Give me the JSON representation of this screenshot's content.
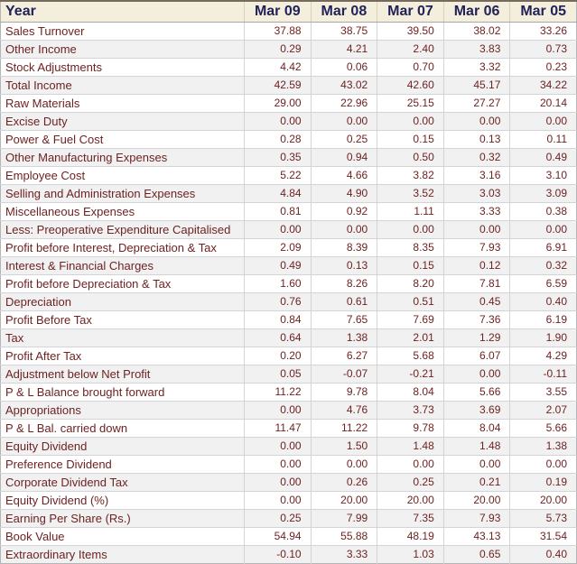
{
  "table": {
    "header": {
      "label": "Year",
      "years": [
        "Mar 09",
        "Mar 08",
        "Mar 07",
        "Mar 06",
        "Mar 05"
      ]
    },
    "rows": [
      {
        "label": "Sales Turnover",
        "values": [
          "37.88",
          "38.75",
          "39.50",
          "38.02",
          "33.26"
        ]
      },
      {
        "label": "Other Income",
        "values": [
          "0.29",
          "4.21",
          "2.40",
          "3.83",
          "0.73"
        ]
      },
      {
        "label": "Stock Adjustments",
        "values": [
          "4.42",
          "0.06",
          "0.70",
          "3.32",
          "0.23"
        ]
      },
      {
        "label": "Total Income",
        "values": [
          "42.59",
          "43.02",
          "42.60",
          "45.17",
          "34.22"
        ]
      },
      {
        "label": "Raw Materials",
        "values": [
          "29.00",
          "22.96",
          "25.15",
          "27.27",
          "20.14"
        ]
      },
      {
        "label": "Excise Duty",
        "values": [
          "0.00",
          "0.00",
          "0.00",
          "0.00",
          "0.00"
        ]
      },
      {
        "label": "Power & Fuel Cost",
        "values": [
          "0.28",
          "0.25",
          "0.15",
          "0.13",
          "0.11"
        ]
      },
      {
        "label": "Other Manufacturing Expenses",
        "values": [
          "0.35",
          "0.94",
          "0.50",
          "0.32",
          "0.49"
        ]
      },
      {
        "label": "Employee Cost",
        "values": [
          "5.22",
          "4.66",
          "3.82",
          "3.16",
          "3.10"
        ]
      },
      {
        "label": "Selling and Administration Expenses",
        "values": [
          "4.84",
          "4.90",
          "3.52",
          "3.03",
          "3.09"
        ]
      },
      {
        "label": "Miscellaneous Expenses",
        "values": [
          "0.81",
          "0.92",
          "1.11",
          "3.33",
          "0.38"
        ]
      },
      {
        "label": "Less: Preoperative Expenditure Capitalised",
        "values": [
          "0.00",
          "0.00",
          "0.00",
          "0.00",
          "0.00"
        ]
      },
      {
        "label": "Profit before Interest, Depreciation & Tax",
        "values": [
          "2.09",
          "8.39",
          "8.35",
          "7.93",
          "6.91"
        ]
      },
      {
        "label": "Interest & Financial Charges",
        "values": [
          "0.49",
          "0.13",
          "0.15",
          "0.12",
          "0.32"
        ]
      },
      {
        "label": "Profit before Depreciation & Tax",
        "values": [
          "1.60",
          "8.26",
          "8.20",
          "7.81",
          "6.59"
        ]
      },
      {
        "label": "Depreciation",
        "values": [
          "0.76",
          "0.61",
          "0.51",
          "0.45",
          "0.40"
        ]
      },
      {
        "label": "Profit Before Tax",
        "values": [
          "0.84",
          "7.65",
          "7.69",
          "7.36",
          "6.19"
        ]
      },
      {
        "label": "Tax",
        "values": [
          "0.64",
          "1.38",
          "2.01",
          "1.29",
          "1.90"
        ]
      },
      {
        "label": "Profit After Tax",
        "values": [
          "0.20",
          "6.27",
          "5.68",
          "6.07",
          "4.29"
        ]
      },
      {
        "label": "Adjustment below Net Profit",
        "values": [
          "0.05",
          "-0.07",
          "-0.21",
          "0.00",
          "-0.11"
        ]
      },
      {
        "label": "P & L Balance brought forward",
        "values": [
          "11.22",
          "9.78",
          "8.04",
          "5.66",
          "3.55"
        ]
      },
      {
        "label": "Appropriations",
        "values": [
          "0.00",
          "4.76",
          "3.73",
          "3.69",
          "2.07"
        ]
      },
      {
        "label": "P & L Bal. carried down",
        "values": [
          "11.47",
          "11.22",
          "9.78",
          "8.04",
          "5.66"
        ]
      },
      {
        "label": "Equity Dividend",
        "values": [
          "0.00",
          "1.50",
          "1.48",
          "1.48",
          "1.38"
        ]
      },
      {
        "label": "Preference Dividend",
        "values": [
          "0.00",
          "0.00",
          "0.00",
          "0.00",
          "0.00"
        ]
      },
      {
        "label": "Corporate Dividend Tax",
        "values": [
          "0.00",
          "0.26",
          "0.25",
          "0.21",
          "0.19"
        ]
      },
      {
        "label": "Equity Dividend (%)",
        "values": [
          "0.00",
          "20.00",
          "20.00",
          "20.00",
          "20.00"
        ]
      },
      {
        "label": "Earning Per Share (Rs.)",
        "values": [
          "0.25",
          "7.99",
          "7.35",
          "7.93",
          "5.73"
        ]
      },
      {
        "label": "Book Value",
        "values": [
          "54.94",
          "55.88",
          "48.19",
          "43.13",
          "31.54"
        ]
      },
      {
        "label": "Extraordinary Items",
        "values": [
          "-0.10",
          "3.33",
          "1.03",
          "0.65",
          "0.40"
        ]
      }
    ]
  },
  "colors": {
    "header_bg": "#F3EFDC",
    "header_text": "#232258",
    "data_text": "#6E2222",
    "row_alt_bg": "#F1F1F1",
    "grid_line": "#D4D4D4",
    "header_grid_line": "#D8D2BA",
    "header_bottom_line": "#A8A8A8",
    "outer_border": "#B5B5B5",
    "top_border": "#756A5C"
  }
}
